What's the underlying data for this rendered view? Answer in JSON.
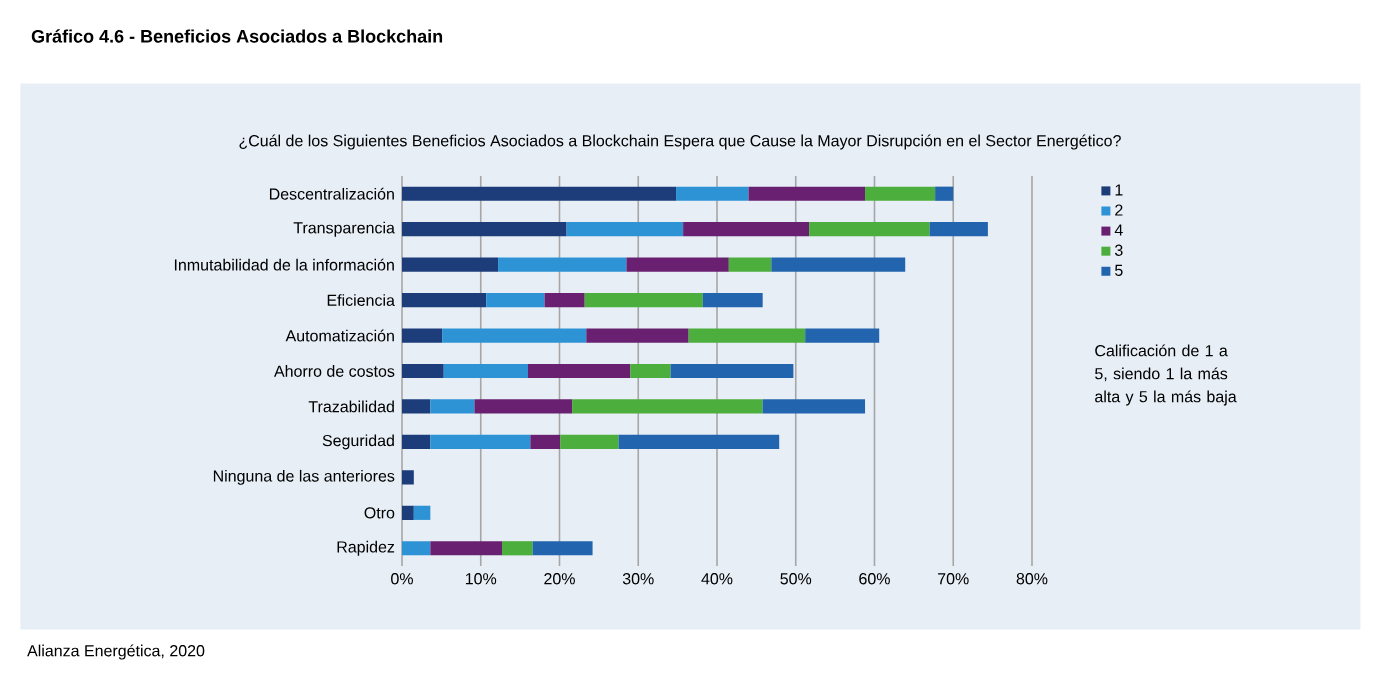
{
  "chart_data": {
    "type": "bar",
    "orientation": "horizontal",
    "stacked": true,
    "title": "Gráfico 4.6 - Beneficios Asociados a Blockchain",
    "subtitle": "¿Cuál de los Siguientes Beneficios Asociados a Blockchain Espera que Cause la Mayor Disrupción en el Sector Energético?",
    "categories": [
      "Descentralización",
      "Transparencia",
      "Inmutabilidad de la información",
      "Eficiencia",
      "Automatización",
      "Ahorro de costos",
      "Trazabilidad",
      "Seguridad",
      "Ninguna de las anteriores",
      "Otro",
      "Rapidez"
    ],
    "series": [
      {
        "name": "1",
        "color": "#1c3d7a",
        "values": [
          34.8,
          20.9,
          12.2,
          10.7,
          5.1,
          5.3,
          3.6,
          3.6,
          1.5,
          1.5,
          null
        ]
      },
      {
        "name": "2",
        "color": "#2e93d5",
        "values": [
          9.2,
          14.8,
          16.3,
          7.4,
          18.3,
          10.7,
          5.6,
          12.7,
          null,
          2.1,
          3.6
        ]
      },
      {
        "name": "4",
        "color": "#6a2070",
        "values": [
          14.8,
          16.0,
          13.0,
          5.1,
          13.0,
          13.0,
          12.4,
          3.8,
          null,
          null,
          9.1
        ]
      },
      {
        "name": "3",
        "color": "#4cae3c",
        "values": [
          8.9,
          15.3,
          5.4,
          15.0,
          14.8,
          5.1,
          24.2,
          7.4,
          null,
          null,
          3.9
        ]
      },
      {
        "name": "5",
        "color": "#2264ad",
        "values": [
          2.3,
          7.4,
          17.0,
          7.6,
          9.4,
          15.6,
          13.0,
          20.4,
          null,
          null,
          7.6
        ]
      }
    ],
    "xlim": [
      0,
      80
    ],
    "xticks": [
      {
        "value": 0,
        "label": "0%"
      },
      {
        "value": 10,
        "label": "10%"
      },
      {
        "value": 20,
        "label": "20%"
      },
      {
        "value": 30,
        "label": "30%"
      },
      {
        "value": 40,
        "label": "40%"
      },
      {
        "value": 50,
        "label": "50%"
      },
      {
        "value": 60,
        "label": "60%"
      },
      {
        "value": 70,
        "label": "70%"
      },
      {
        "value": 80,
        "label": "80%"
      }
    ],
    "grid": "x",
    "legend": "right",
    "annotations": [
      "Calificación de 1 a 5, siendo 1 la más alta y 5 la más baja",
      "Alianza Energética, 2020"
    ]
  }
}
